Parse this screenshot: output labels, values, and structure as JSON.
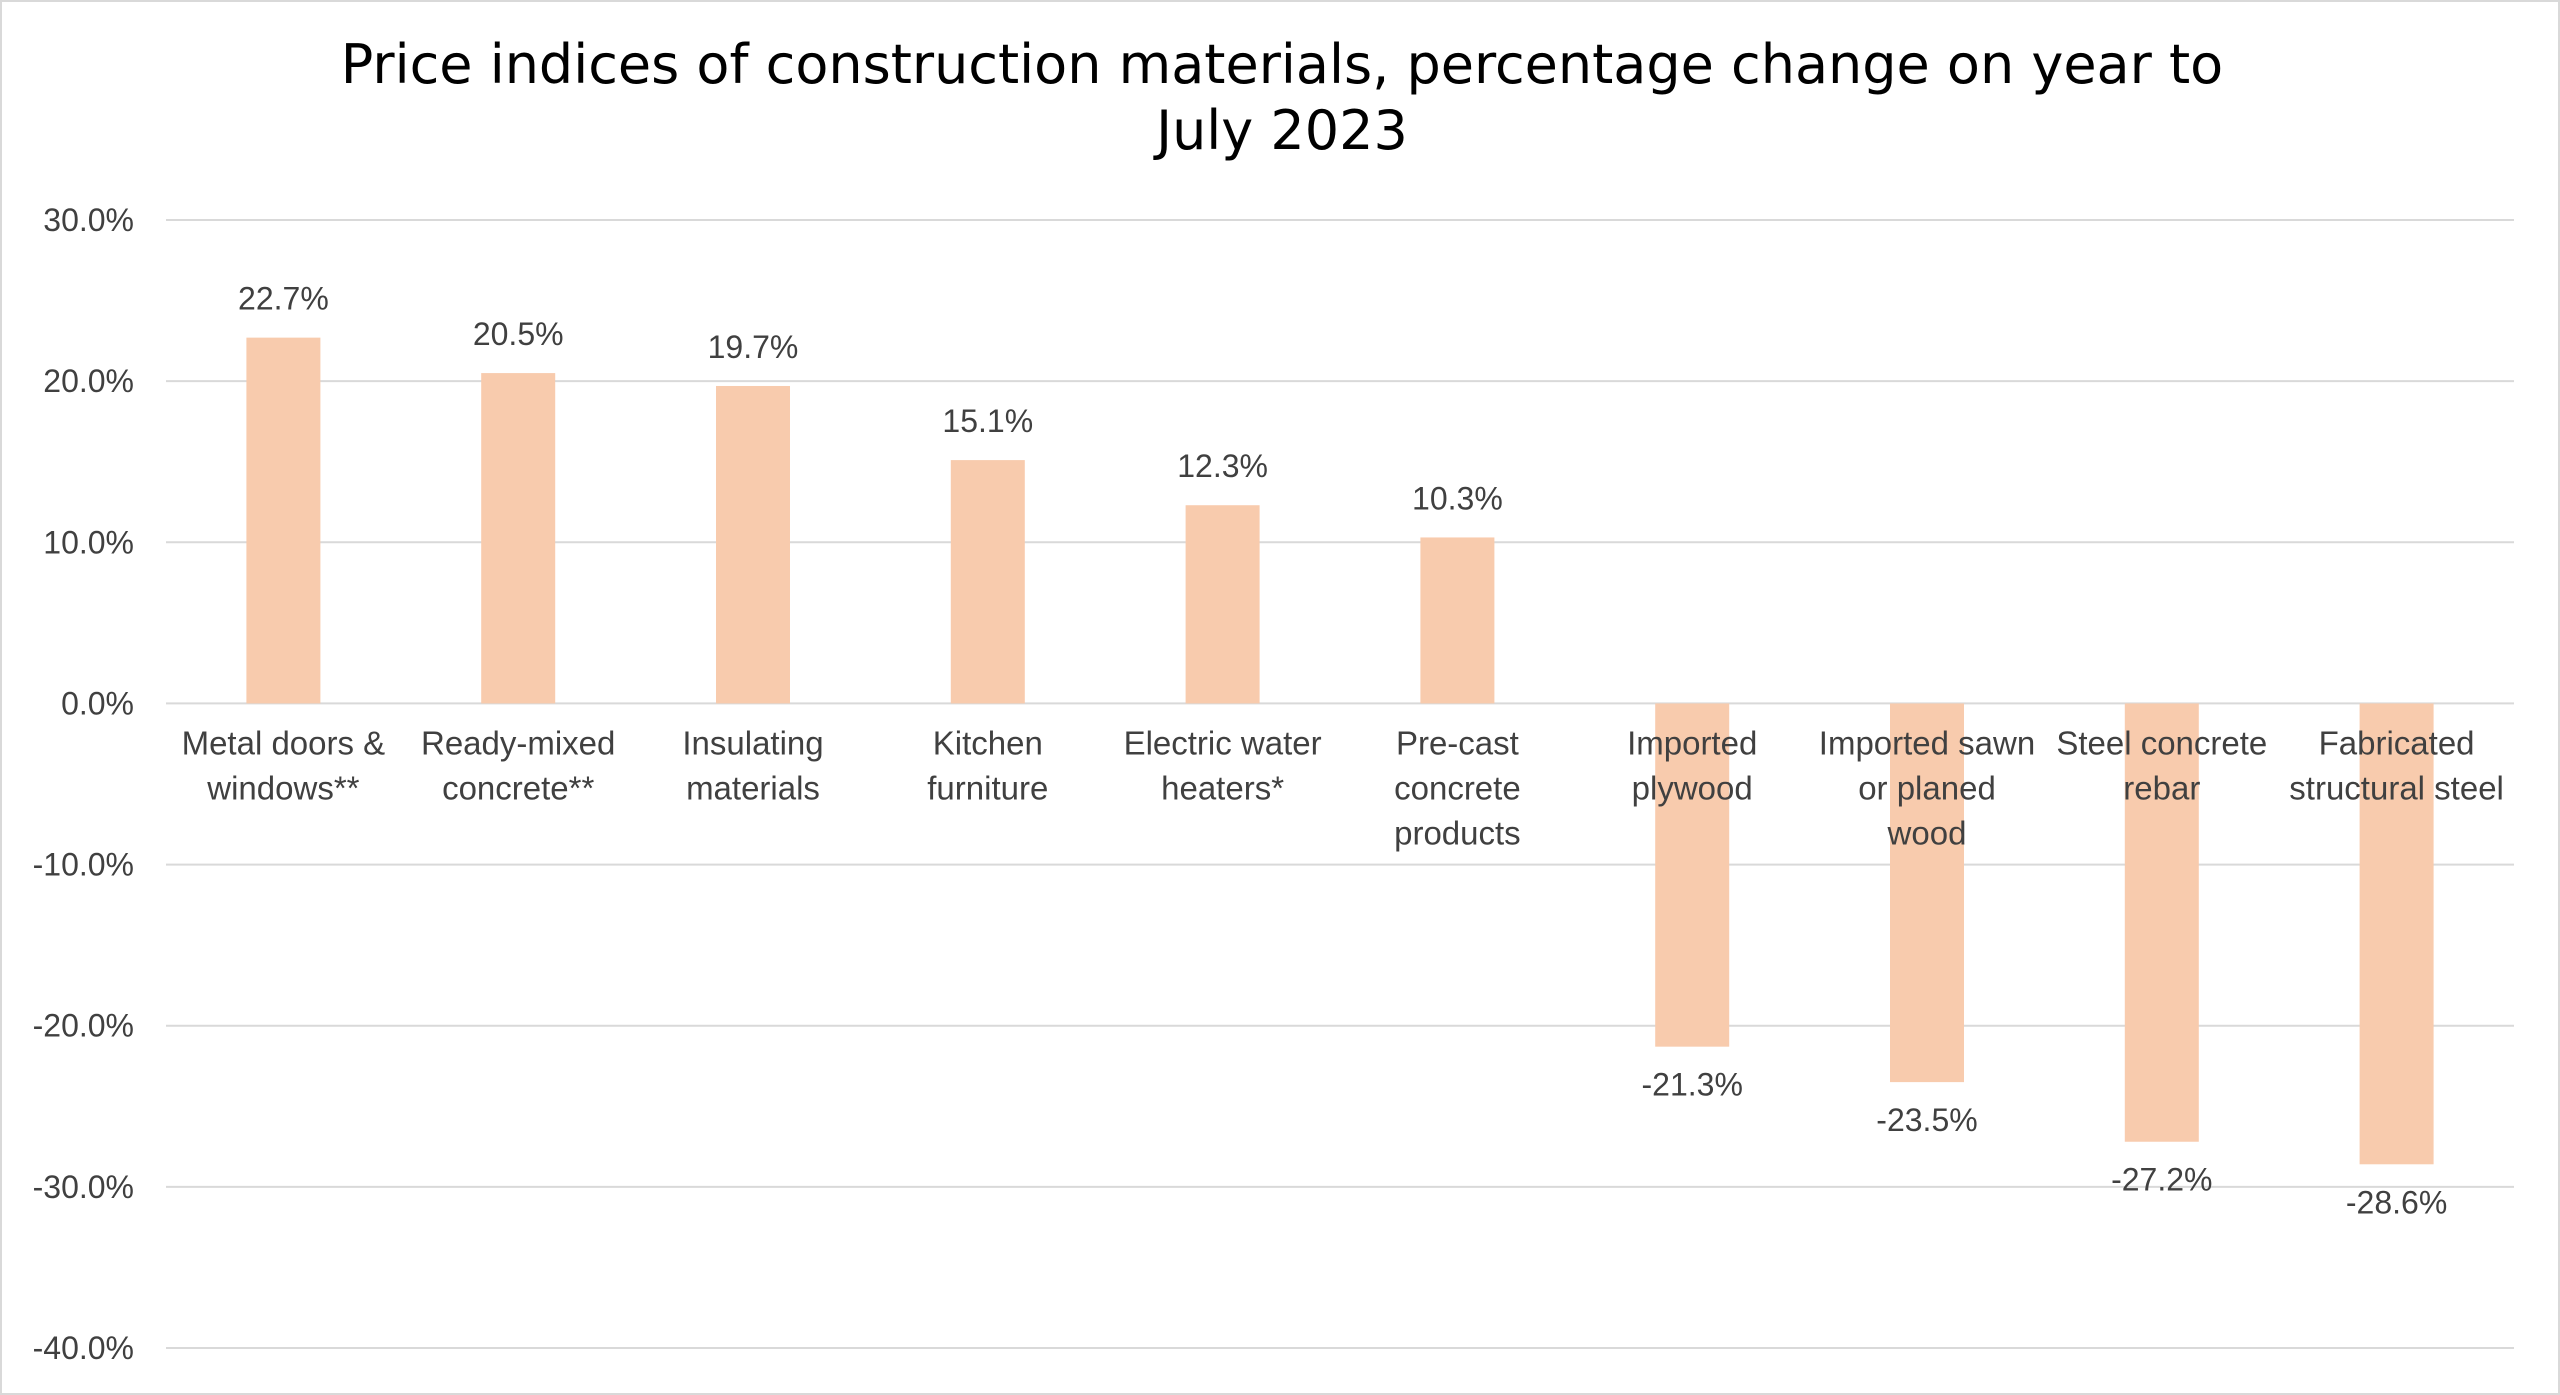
{
  "chart_data": {
    "type": "bar",
    "title": "Price indices of construction materials, percentage change on year to\nJuly 2023",
    "xlabel": "",
    "ylabel": "",
    "ylim": [
      -40,
      30
    ],
    "yticks": [
      30,
      20,
      10,
      0,
      -10,
      -20,
      -30,
      -40
    ],
    "ytick_labels": [
      "30.0%",
      "20.0%",
      "10.0%",
      "0.0%",
      "-10.0%",
      "-20.0%",
      "-30.0%",
      "-40.0%"
    ],
    "grid": true,
    "legend": "none",
    "bar_color": "#f8cbad",
    "gridline_color": "#d9d9d9",
    "categories": [
      [
        "Metal doors &",
        "windows**"
      ],
      [
        "Ready-mixed",
        "concrete**"
      ],
      [
        "Insulating",
        "materials"
      ],
      [
        "Kitchen",
        "furniture"
      ],
      [
        "Electric water",
        "heaters*"
      ],
      [
        "Pre-cast",
        "concrete",
        "products"
      ],
      [
        "Imported",
        "plywood"
      ],
      [
        "Imported sawn",
        "or planed",
        "wood"
      ],
      [
        "Steel concrete",
        "rebar"
      ],
      [
        "Fabricated",
        "structural steel"
      ]
    ],
    "values": [
      22.7,
      20.5,
      19.7,
      15.1,
      12.3,
      10.3,
      -21.3,
      -23.5,
      -27.2,
      -28.6
    ],
    "data_labels": [
      "22.7%",
      "20.5%",
      "19.7%",
      "15.1%",
      "12.3%",
      "10.3%",
      "-21.3%",
      "-23.5%",
      "-27.2%",
      "-28.6%"
    ]
  }
}
